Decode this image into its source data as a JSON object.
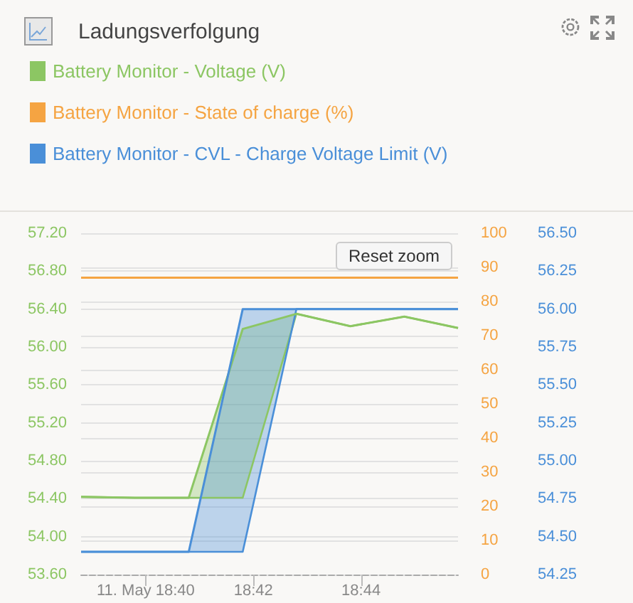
{
  "chart_data": {
    "type": "line",
    "title": "Ladungsverfolgung",
    "annotations": [
      "Reset zoom"
    ],
    "x": [
      18.6467,
      18.6633,
      18.68,
      18.6967,
      18.7133,
      18.73,
      18.7467,
      18.7633
    ],
    "xlim": [
      18.6467,
      18.7633
    ],
    "xticks": [
      {
        "value": 18.6667,
        "label": "11. May 18:40"
      },
      {
        "value": 18.7,
        "label": "18:42"
      },
      {
        "value": 18.7333,
        "label": "18:44"
      }
    ],
    "ylim": [
      53.6,
      57.2
    ],
    "yticks": [
      {
        "value": 53.6,
        "label": "53.60"
      },
      {
        "value": 54,
        "label": "54.00"
      },
      {
        "value": 54.4,
        "label": "54.40"
      },
      {
        "value": 54.8,
        "label": "54.80"
      },
      {
        "value": 55.2,
        "label": "55.20"
      },
      {
        "value": 55.6,
        "label": "55.60"
      },
      {
        "value": 56,
        "label": "56.00"
      },
      {
        "value": 56.4,
        "label": "56.40"
      },
      {
        "value": 56.8,
        "label": "56.80"
      },
      {
        "value": 57.2,
        "label": "57.20"
      }
    ],
    "y2lim": [
      0,
      100
    ],
    "y2ticks": [
      0,
      10,
      20,
      30,
      40,
      50,
      60,
      70,
      80,
      90,
      100
    ],
    "y3lim": [
      54.25,
      56.5
    ],
    "y3ticks": [
      54.25,
      {
        "value": 54.5,
        "label": "54.50"
      },
      54.75,
      {
        "value": 55,
        "label": "55.00"
      },
      55.25,
      {
        "value": 55.5,
        "label": "55.50"
      },
      55.75,
      {
        "value": 56,
        "label": "56.00"
      },
      56.25,
      {
        "value": 56.5,
        "label": "56.50"
      }
    ],
    "series": [
      {
        "name": "Battery Monitor - Voltage (V)",
        "color": "#8cc663",
        "values": [
          54.42,
          54.41,
          54.41,
          56.19,
          56.35,
          56.22,
          56.32,
          56.2
        ],
        "lower": [
          54.42,
          54.41,
          54.41,
          54.41,
          56.35,
          56.22,
          56.32,
          56.2
        ],
        "upper": [
          54.42,
          54.41,
          54.41,
          56.19,
          56.35,
          56.22,
          56.32,
          56.2
        ]
      },
      {
        "name": "Battery Monitor - State of charge (%)",
        "color": "#f5a442",
        "axis": "y2",
        "values": [
          87,
          87,
          87,
          87,
          87,
          87,
          87,
          87
        ]
      },
      {
        "name": "Battery Monitor - CVL - Charge Voltage Limit (V)",
        "color": "#4a8fd8",
        "axis": "y3",
        "values": [
          54.4,
          54.4,
          54.4,
          56,
          56,
          56,
          56,
          56
        ],
        "lower": [
          54.4,
          54.4,
          54.4,
          54.4,
          56,
          56,
          56,
          56
        ],
        "upper": [
          54.4,
          54.4,
          54.4,
          56,
          56,
          56,
          56,
          56
        ]
      }
    ],
    "grid": "y",
    "legend": "top left",
    "marker": "none",
    "line_style": "solid"
  }
}
